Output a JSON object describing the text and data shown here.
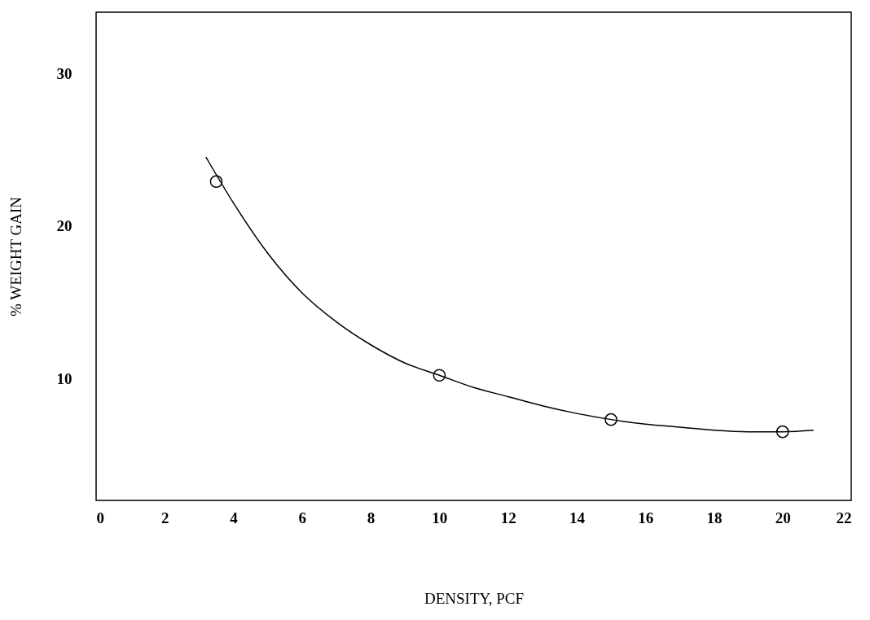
{
  "chart_data": {
    "type": "scatter",
    "xlabel": "DENSITY, PCF",
    "ylabel": "% WEIGHT GAIN",
    "xlim": [
      0,
      22
    ],
    "ylim": [
      2,
      34
    ],
    "xticks": [
      0,
      2,
      4,
      6,
      8,
      10,
      12,
      14,
      16,
      18,
      20,
      22
    ],
    "yticks": [
      10,
      20,
      30
    ],
    "grid": false,
    "series": [
      {
        "color": "#000000",
        "marker": "circle",
        "x": [
          3.5,
          10,
          15,
          20
        ],
        "values": [
          22.9,
          10.2,
          7.3,
          6.5
        ]
      },
      {
        "type": "line",
        "color": "#000000",
        "marker": "none",
        "line_style": "solid",
        "x": [
          3.2,
          4,
          5,
          6,
          7,
          8,
          9,
          10,
          11,
          12,
          13,
          14,
          15,
          16,
          17,
          18,
          19,
          20,
          20.9
        ],
        "values": [
          24.5,
          21.5,
          18.2,
          15.6,
          13.7,
          12.2,
          11.0,
          10.2,
          9.4,
          8.8,
          8.2,
          7.7,
          7.3,
          7.0,
          6.8,
          6.6,
          6.5,
          6.5,
          6.6
        ]
      }
    ]
  }
}
